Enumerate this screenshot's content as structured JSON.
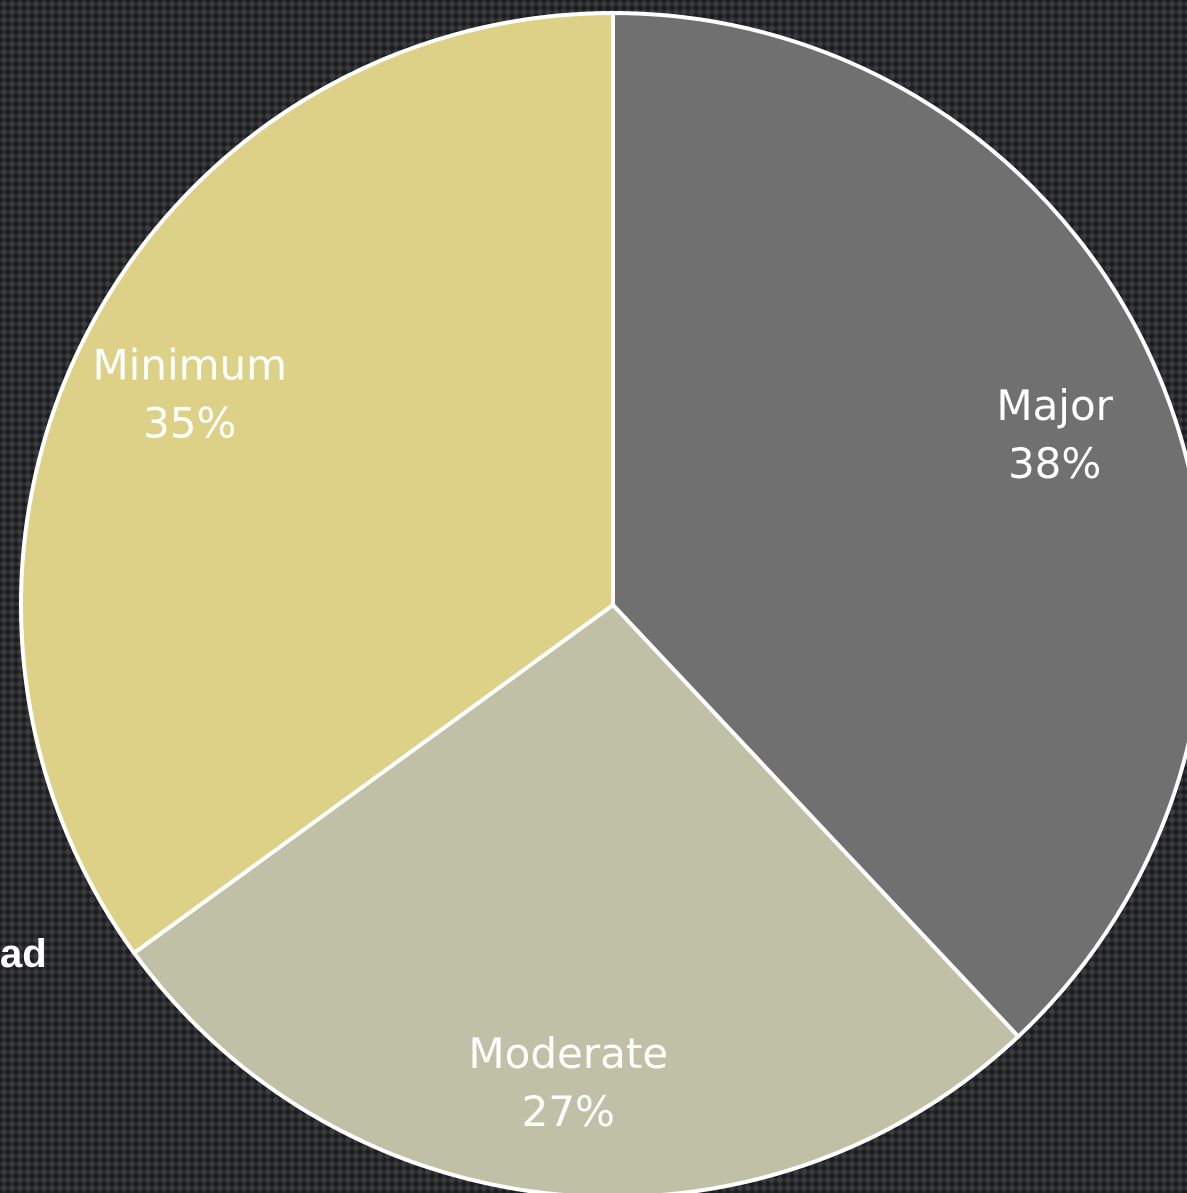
{
  "side_text": "ad",
  "chart_data": {
    "type": "pie",
    "title": "",
    "start_angle_deg": 0,
    "direction": "clockwise",
    "slices": [
      {
        "label": "Major",
        "value": 38,
        "value_label": "38%",
        "color": "#707070"
      },
      {
        "label": "Moderate",
        "value": 27,
        "value_label": "27%",
        "color": "#bfc0a5"
      },
      {
        "label": "Minimum",
        "value": 35,
        "value_label": "35%",
        "color": "#dcd187"
      }
    ],
    "legend": "none",
    "data_labels": "inside"
  }
}
